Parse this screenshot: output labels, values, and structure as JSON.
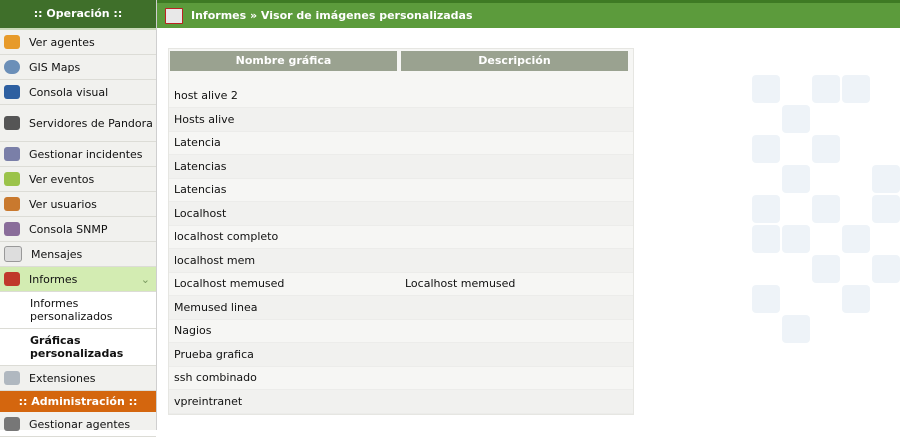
{
  "sidebar": {
    "operation_header": ":: Operación ::",
    "items": [
      "Ver agentes",
      "GIS Maps",
      "Consola visual",
      "Servidores de Pandora",
      "Gestionar incidentes",
      "Ver eventos",
      "Ver usuarios",
      "Consola SNMP",
      "Mensajes",
      "Informes"
    ],
    "subitems": [
      "Informes personalizados",
      "Gráficas personalizadas"
    ],
    "extensions": "Extensiones",
    "admin_header": ":: Administración ::",
    "admin_items": [
      "Gestionar agentes"
    ]
  },
  "header": {
    "title": "Informes » Visor de imágenes personalizadas"
  },
  "table": {
    "columns": [
      "Nombre gráfica",
      "Descripción"
    ],
    "rows": [
      {
        "name": "host alive 2"
      },
      {
        "name": "Hosts alive"
      },
      {
        "name": "Latencia"
      },
      {
        "name": "Latencias"
      },
      {
        "name": "Latencias"
      },
      {
        "name": "Localhost"
      },
      {
        "name": "localhost completo"
      },
      {
        "name": "localhost mem"
      },
      {
        "name": "Localhost memused",
        "description": "Localhost memused"
      },
      {
        "name": "Memused linea"
      },
      {
        "name": "Nagios"
      },
      {
        "name": "Prueba grafica"
      },
      {
        "name": "ssh combinado"
      },
      {
        "name": "vpreintranet"
      }
    ]
  }
}
